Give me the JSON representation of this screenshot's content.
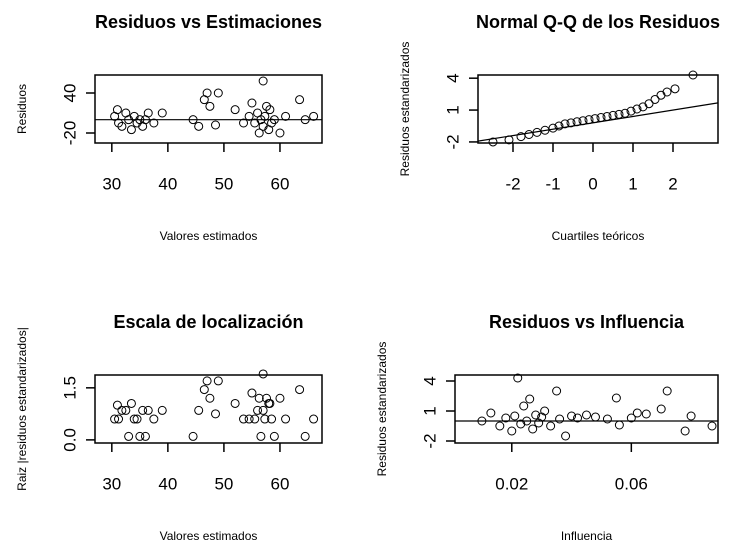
{
  "chart_data": [
    {
      "type": "scatter",
      "title": "Residuos vs Estimaciones",
      "x_label": "Valores estimados",
      "y_label": "Residuos",
      "x": [
        30.5,
        31,
        31.2,
        31.8,
        32.5,
        33,
        33.5,
        34,
        34.5,
        35,
        35.5,
        36,
        36.5,
        37.5,
        39,
        44.5,
        45.5,
        46.5,
        47,
        47.5,
        48.5,
        49,
        52,
        53.5,
        54.5,
        55,
        55.5,
        56,
        56.3,
        56.6,
        57,
        57,
        57.3,
        57.6,
        58,
        58.2,
        58.5,
        59,
        60,
        61,
        63.5,
        64.5,
        66
      ],
      "values": [
        5,
        15,
        -5,
        -10,
        10,
        0,
        -15,
        5,
        -5,
        0,
        -10,
        0,
        10,
        -5,
        10,
        0,
        -10,
        30,
        40,
        20,
        -8,
        40,
        15,
        -5,
        5,
        25,
        -5,
        10,
        -20,
        0,
        58,
        -10,
        5,
        20,
        -15,
        15,
        -5,
        0,
        -20,
        5,
        30,
        0,
        5
      ],
      "xlim": [
        27,
        67.5
      ],
      "ylim": [
        -35,
        67
      ],
      "xticks": [
        30,
        40,
        50,
        60
      ],
      "yticks": [
        -20,
        40
      ],
      "reference_line": {
        "intercept": 0,
        "slope": 0
      }
    },
    {
      "type": "scatter",
      "title": "Normal Q-Q de los Residuos",
      "x_label": "Cuartiles teóricos",
      "y_label": "Residuos estandarizados",
      "x": [
        -2.5,
        -2.1,
        -1.8,
        -1.6,
        -1.4,
        -1.2,
        -1.0,
        -0.85,
        -0.7,
        -0.55,
        -0.4,
        -0.25,
        -0.1,
        0.05,
        0.2,
        0.35,
        0.5,
        0.65,
        0.8,
        0.95,
        1.1,
        1.25,
        1.4,
        1.55,
        1.7,
        1.85,
        2.05,
        2.5
      ],
      "values": [
        -2,
        -1.8,
        -1.5,
        -1.3,
        -1.1,
        -0.9,
        -0.7,
        -0.5,
        -0.3,
        -0.2,
        -0.1,
        0,
        0.1,
        0.2,
        0.3,
        0.4,
        0.5,
        0.6,
        0.7,
        0.9,
        1.1,
        1.3,
        1.6,
        2.0,
        2.4,
        2.7,
        3.0,
        4.3
      ],
      "xlim": [
        -2.875,
        3.125
      ],
      "ylim": [
        -2.1,
        4.3
      ],
      "xticks": [
        -2,
        -1,
        0,
        1,
        2
      ],
      "yticks": [
        -2,
        1,
        4
      ],
      "reference_line": {
        "intercept": -0.2,
        "slope": 0.6
      }
    },
    {
      "type": "scatter",
      "title": "Escala de localización",
      "x_label": "Valores estimados",
      "y_label": "Raiz |residuos estandarizados|",
      "x": [
        30.5,
        31,
        31.2,
        31.8,
        32.5,
        33,
        33.5,
        34,
        34.5,
        35,
        35.5,
        36,
        36.5,
        37.5,
        39,
        44.5,
        45.5,
        46.5,
        47,
        47.5,
        48.5,
        49,
        52,
        53.5,
        54.5,
        55,
        55.5,
        56,
        56.3,
        56.6,
        57,
        57,
        57.3,
        57.6,
        58,
        58.2,
        58.5,
        59,
        60,
        61,
        63.5,
        64.5,
        66
      ],
      "values": [
        0.6,
        1.0,
        0.6,
        0.85,
        0.85,
        0.1,
        1.05,
        0.6,
        0.6,
        0.1,
        0.85,
        0.1,
        0.85,
        0.6,
        0.85,
        0.1,
        0.85,
        1.45,
        1.7,
        1.2,
        0.75,
        1.7,
        1.05,
        0.6,
        0.6,
        1.35,
        0.6,
        0.85,
        1.2,
        0.1,
        1.9,
        0.85,
        0.6,
        1.2,
        1.05,
        1.05,
        0.6,
        0.1,
        1.2,
        0.6,
        1.45,
        0.1,
        0.6
      ],
      "xlim": [
        27,
        67.5
      ],
      "ylim": [
        -0.09,
        1.87
      ],
      "xticks": [
        30,
        40,
        50,
        60
      ],
      "yticks": [
        {
          "value": 0,
          "label": "0.0"
        },
        1.5
      ]
    },
    {
      "type": "scatter",
      "title": "Residuos vs Influencia",
      "x_label": "Influencia",
      "y_label": "Residuos estandarizados",
      "x": [
        0.01,
        0.013,
        0.016,
        0.018,
        0.02,
        0.021,
        0.022,
        0.023,
        0.024,
        0.025,
        0.026,
        0.027,
        0.028,
        0.029,
        0.03,
        0.031,
        0.033,
        0.035,
        0.036,
        0.038,
        0.04,
        0.042,
        0.045,
        0.048,
        0.052,
        0.055,
        0.056,
        0.06,
        0.062,
        0.065,
        0.07,
        0.072,
        0.078,
        0.08,
        0.087
      ],
      "values": [
        0,
        0.8,
        -0.5,
        0.3,
        -1,
        0.5,
        4.3,
        -0.3,
        1.5,
        0,
        2.2,
        -0.8,
        0.6,
        -0.2,
        0.4,
        1,
        -0.5,
        3,
        0.2,
        -1.5,
        0.5,
        0.3,
        0.6,
        0.4,
        0.2,
        2.3,
        -0.4,
        0.3,
        0.8,
        0.7,
        1.2,
        3,
        -1,
        0.5,
        -0.5
      ],
      "xlim": [
        0.001,
        0.089
      ],
      "ylim": [
        -2.2,
        4.6
      ],
      "xticks": [
        0.02,
        0.06
      ],
      "yticks": [
        -2,
        1,
        4
      ],
      "reference_line": {
        "intercept": 0,
        "slope": 0
      }
    }
  ]
}
